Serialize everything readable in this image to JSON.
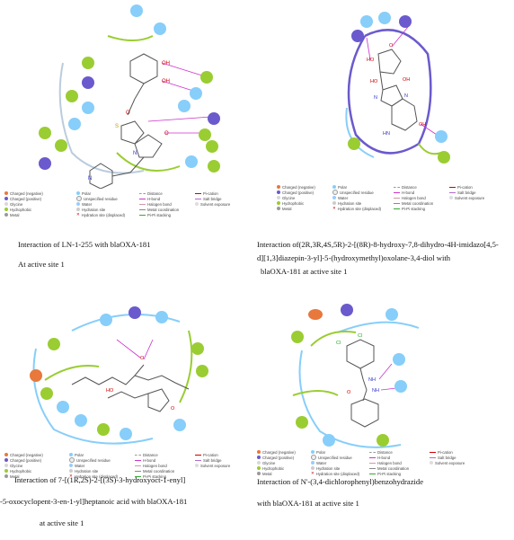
{
  "legend_items": {
    "charged_negative": "Charged (negative)",
    "charged_positive": "Charged (positive)",
    "glycine": "Glycine",
    "hydrophobic": "Hydrophobic",
    "metal": "Metal",
    "polar": "Polar",
    "unspecified_residue": "Unspecified residue",
    "water": "Water",
    "hydration_site": "Hydration site",
    "hydration_site_displaced": "Hydration site (displaced)",
    "distance": "Distance",
    "h_bond": "H-bond",
    "halogen_bond": "Halogen bond",
    "metal_coordination": "Metal coordination",
    "pi_pi_stacking": "Pi-Pi stacking",
    "pi_cation": "Pi-cation",
    "salt_bridge": "Salt bridge",
    "solvent_exposure": "Solvent exposure"
  },
  "colors": {
    "neg": "#e8783c",
    "pos": "#6a5acd",
    "gly": "#d8d8d8",
    "hydrophobic": "#9acd32",
    "metal": "#999999",
    "polar": "#87cefa",
    "hbond": "#cc33cc",
    "pication": "#cc0000",
    "saltbridge": "#b06ad0"
  },
  "captions": {
    "p1_line1": "Interaction of LN-1-255 with blaOXA-181",
    "p1_line2": "At active site 1",
    "p2_line1": "Interaction of(2R,3R,4S,5R)-2-[(8R)-8-hydroxy-7,8-dihydro-4H-imidazo[4,5-",
    "p2_line2": "d][1,3]diazepin-3-yl]-5-(hydroxymethyl)oxolane-3,4-diol with",
    "p2_line3": "blaOXA-181 at active site 1",
    "p3_line1": "Interaction of 7-[(1R,2S)-2-[(3S)-3-hydroxyoct-1-enyl]",
    "p3_line2": "-5-oxocyclopent-3-en-1-yl]heptanoic acid with blaOXA-181",
    "p3_line3": "at active site 1",
    "p4_line1": "Interaction of N'-(3,4-dichlorophenyl)benzohydrazide",
    "p4_line2": "with blaOXA-181 at active site 1"
  },
  "atoms": {
    "o": "O",
    "n": "N",
    "s": "S",
    "oh": "OH",
    "ho": "HO",
    "cl": "Cl",
    "nh": "NH",
    "hn": "HN"
  }
}
